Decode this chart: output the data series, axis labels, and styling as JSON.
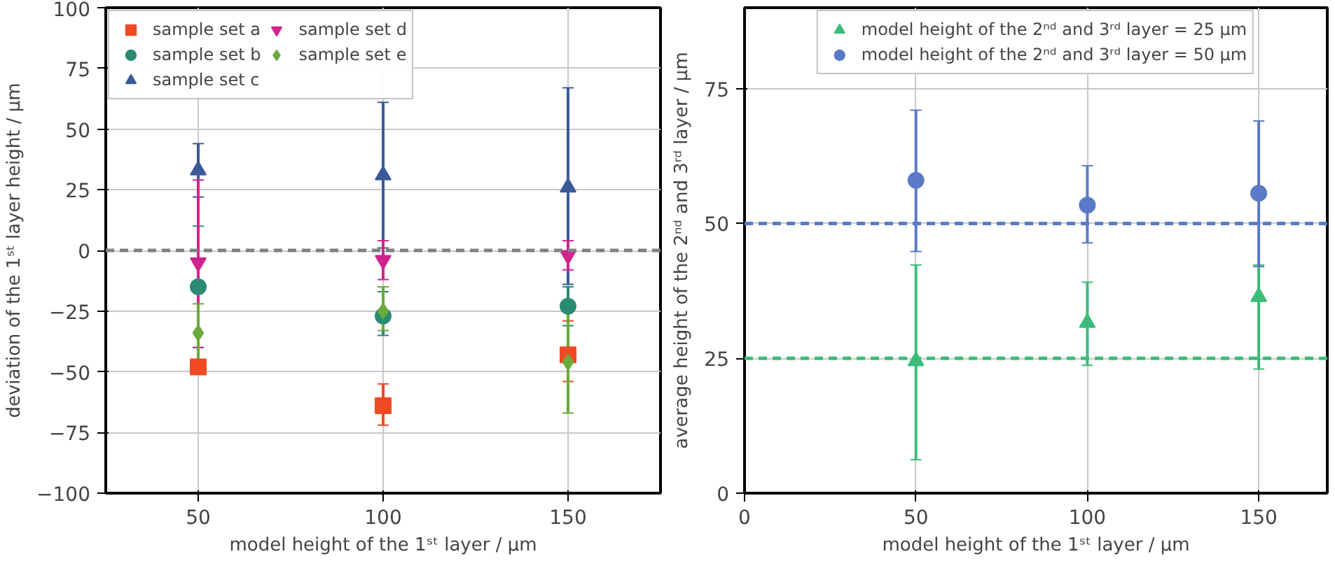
{
  "chart_data": [
    {
      "type": "scatter",
      "xlabel": "model height of the 1ˢᵗ layer / µm",
      "ylabel": "deviation of the 1ˢᵗ layer height / µm",
      "x": [
        50,
        100,
        150
      ],
      "xlim": [
        25,
        175
      ],
      "xticks": [
        50,
        100,
        150
      ],
      "ylim": [
        -100,
        100
      ],
      "yticks": [
        -100,
        -75,
        -50,
        -25,
        0,
        25,
        50,
        75,
        100
      ],
      "grid": true,
      "legend": "top left",
      "ref_lines": [
        {
          "axis": "y",
          "value": 0,
          "color": "#808080",
          "line_style": "dashed"
        }
      ],
      "series": [
        {
          "name": "sample set a",
          "color": "#f04a24",
          "marker": "square",
          "values": [
            -48,
            -64,
            -43
          ],
          "errors": [
            null,
            [
              -72,
              -55
            ],
            [
              -54,
              -29
            ]
          ]
        },
        {
          "name": "sample set b",
          "color": "#2a8a72",
          "marker": "circle",
          "values": [
            -15,
            -27,
            -23
          ],
          "errors": [
            [
              -40,
              10
            ],
            [
              -35,
              -17
            ],
            [
              -31,
              -15
            ]
          ]
        },
        {
          "name": "sample set c",
          "color": "#3c5a9a",
          "marker": "triangle",
          "values": [
            33,
            31,
            26
          ],
          "errors": [
            [
              22,
              44
            ],
            [
              1,
              61
            ],
            [
              -14,
              67
            ]
          ]
        },
        {
          "name": "sample set d",
          "color": "#d1238f",
          "values": [
            -5,
            -4,
            -2
          ],
          "errors": [
            [
              -40,
              29
            ],
            [
              -12,
              4
            ],
            [
              -8,
              4
            ]
          ]
        },
        {
          "name": "sample set e",
          "color": "#6aaa3c",
          "marker": "diamond",
          "values": [
            -34,
            -25,
            -46
          ],
          "errors": [
            [
              -46,
              -22
            ],
            [
              -33,
              -15
            ],
            [
              -67,
              -25
            ]
          ]
        }
      ]
    },
    {
      "type": "scatter",
      "xlabel": "model height of the 1ˢᵗ layer / µm",
      "ylabel": "average height of the 2ⁿᵈ and 3ʳᵈ layer / µm",
      "x": [
        50,
        100,
        150
      ],
      "xlim": [
        0,
        170
      ],
      "xticks": [
        0,
        50,
        100,
        150
      ],
      "ylim": [
        0,
        90
      ],
      "yticks": [
        0,
        25,
        50,
        75
      ],
      "grid": true,
      "legend": "top",
      "ref_lines": [
        {
          "axis": "y",
          "value": 25,
          "color": "#3dbb7a",
          "line_style": "dashed"
        },
        {
          "axis": "y",
          "value": 50,
          "color": "#5a7ac8",
          "line_style": "dashed"
        }
      ],
      "series": [
        {
          "name": "model height of the 2ⁿᵈ and 3ʳᵈ layer = 25 µm",
          "color": "#3dbb7a",
          "marker": "triangle",
          "values": [
            24.5,
            31.6,
            36.4
          ],
          "errors": [
            [
              6.2,
              42.3
            ],
            [
              23.7,
              39.1
            ],
            [
              23,
              42.3
            ]
          ]
        },
        {
          "name": "model height of the 2ⁿᵈ and 3ʳᵈ layer = 50 µm",
          "color": "#5a7ac8",
          "marker": "circle",
          "values": [
            58,
            53.4,
            55.6
          ],
          "errors": [
            [
              44.8,
              71
            ],
            [
              46.4,
              60.7
            ],
            [
              42,
              69
            ]
          ]
        }
      ]
    }
  ]
}
